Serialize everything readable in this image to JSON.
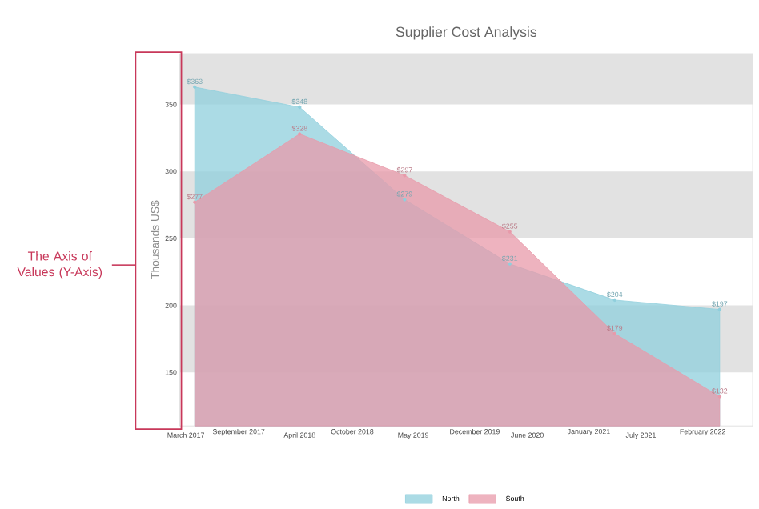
{
  "chart_data": {
    "type": "area",
    "title": "Supplier Cost Analysis",
    "ylabel": "Thousands US$",
    "x": [
      "2017-04",
      "2018-04",
      "2019-04",
      "2020-04",
      "2021-04",
      "2022-04"
    ],
    "series": [
      {
        "name": "North",
        "color": "#8fcfdc",
        "values": [
          363,
          348,
          279,
          231,
          204,
          197
        ],
        "value_labels": [
          "$363",
          "$348",
          "$279",
          "$231",
          "$204",
          "$197"
        ]
      },
      {
        "name": "South",
        "color": "#e89aaa",
        "values": [
          277,
          328,
          297,
          255,
          179,
          132
        ],
        "value_labels": [
          "$277",
          "$328",
          "$297",
          "$255",
          "$179",
          "$132"
        ]
      }
    ],
    "xlim": [
      "2017-02-08",
      "2022-07-25"
    ],
    "xticks": [
      {
        "value": "2017-03",
        "label": "March 2017"
      },
      {
        "value": "2017-09",
        "label": "September 2017"
      },
      {
        "value": "2018-04",
        "label": "April 2018"
      },
      {
        "value": "2018-10",
        "label": "October 2018"
      },
      {
        "value": "2019-05",
        "label": "May 2019"
      },
      {
        "value": "2019-12",
        "label": "December 2019"
      },
      {
        "value": "2020-06",
        "label": "June 2020"
      },
      {
        "value": "2021-01",
        "label": "January 2021"
      },
      {
        "value": "2021-07",
        "label": "July 2021"
      },
      {
        "value": "2022-02",
        "label": "February 2022"
      }
    ],
    "ylim": [
      110,
      388
    ],
    "yticks": [
      150,
      200,
      250,
      300,
      350
    ],
    "bands": [
      {
        "axis": "y",
        "from": 150,
        "to": 200,
        "color": "#e2e2e2"
      },
      {
        "axis": "y",
        "from": 250,
        "to": 300,
        "color": "#e2e2e2"
      },
      {
        "axis": "y",
        "from": 350,
        "to": 388,
        "color": "#e2e2e2"
      }
    ],
    "marker": "circle",
    "legend": "bottom",
    "grid": false,
    "annotations": [
      "The Axis of Values (Y-Axis)"
    ]
  }
}
